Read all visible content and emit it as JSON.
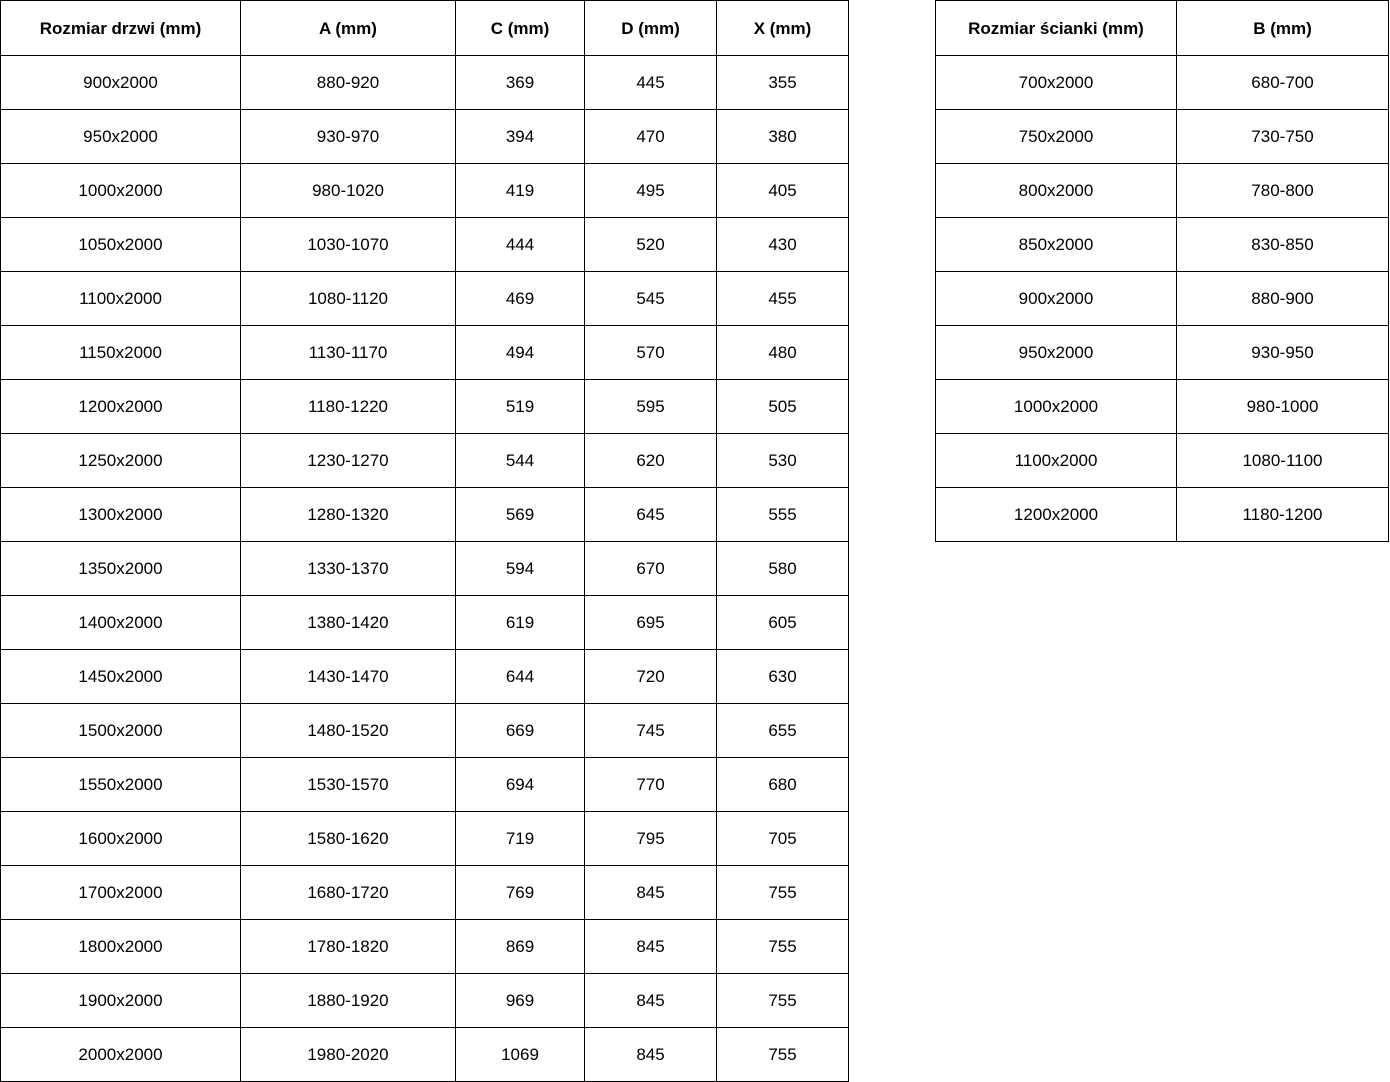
{
  "chart_data": [
    {
      "type": "table",
      "title": "Rozmiar drzwi",
      "headers": [
        "Rozmiar drzwi (mm)",
        "A (mm)",
        "C (mm)",
        "D (mm)",
        "X (mm)"
      ],
      "rows": [
        [
          "900x2000",
          "880-920",
          "369",
          "445",
          "355"
        ],
        [
          "950x2000",
          "930-970",
          "394",
          "470",
          "380"
        ],
        [
          "1000x2000",
          "980-1020",
          "419",
          "495",
          "405"
        ],
        [
          "1050x2000",
          "1030-1070",
          "444",
          "520",
          "430"
        ],
        [
          "1100x2000",
          "1080-1120",
          "469",
          "545",
          "455"
        ],
        [
          "1150x2000",
          "1130-1170",
          "494",
          "570",
          "480"
        ],
        [
          "1200x2000",
          "1180-1220",
          "519",
          "595",
          "505"
        ],
        [
          "1250x2000",
          "1230-1270",
          "544",
          "620",
          "530"
        ],
        [
          "1300x2000",
          "1280-1320",
          "569",
          "645",
          "555"
        ],
        [
          "1350x2000",
          "1330-1370",
          "594",
          "670",
          "580"
        ],
        [
          "1400x2000",
          "1380-1420",
          "619",
          "695",
          "605"
        ],
        [
          "1450x2000",
          "1430-1470",
          "644",
          "720",
          "630"
        ],
        [
          "1500x2000",
          "1480-1520",
          "669",
          "745",
          "655"
        ],
        [
          "1550x2000",
          "1530-1570",
          "694",
          "770",
          "680"
        ],
        [
          "1600x2000",
          "1580-1620",
          "719",
          "795",
          "705"
        ],
        [
          "1700x2000",
          "1680-1720",
          "769",
          "845",
          "755"
        ],
        [
          "1800x2000",
          "1780-1820",
          "869",
          "845",
          "755"
        ],
        [
          "1900x2000",
          "1880-1920",
          "969",
          "845",
          "755"
        ],
        [
          "2000x2000",
          "1980-2020",
          "1069",
          "845",
          "755"
        ]
      ]
    },
    {
      "type": "table",
      "title": "Rozmiar ścianki",
      "headers": [
        "Rozmiar ścianki (mm)",
        "B (mm)"
      ],
      "rows": [
        [
          "700x2000",
          "680-700"
        ],
        [
          "750x2000",
          "730-750"
        ],
        [
          "800x2000",
          "780-800"
        ],
        [
          "850x2000",
          "830-850"
        ],
        [
          "900x2000",
          "880-900"
        ],
        [
          "950x2000",
          "930-950"
        ],
        [
          "1000x2000",
          "980-1000"
        ],
        [
          "1100x2000",
          "1080-1100"
        ],
        [
          "1200x2000",
          "1180-1200"
        ]
      ]
    }
  ],
  "colors": {
    "border": "#000000",
    "text": "#000000",
    "background": "#ffffff"
  }
}
